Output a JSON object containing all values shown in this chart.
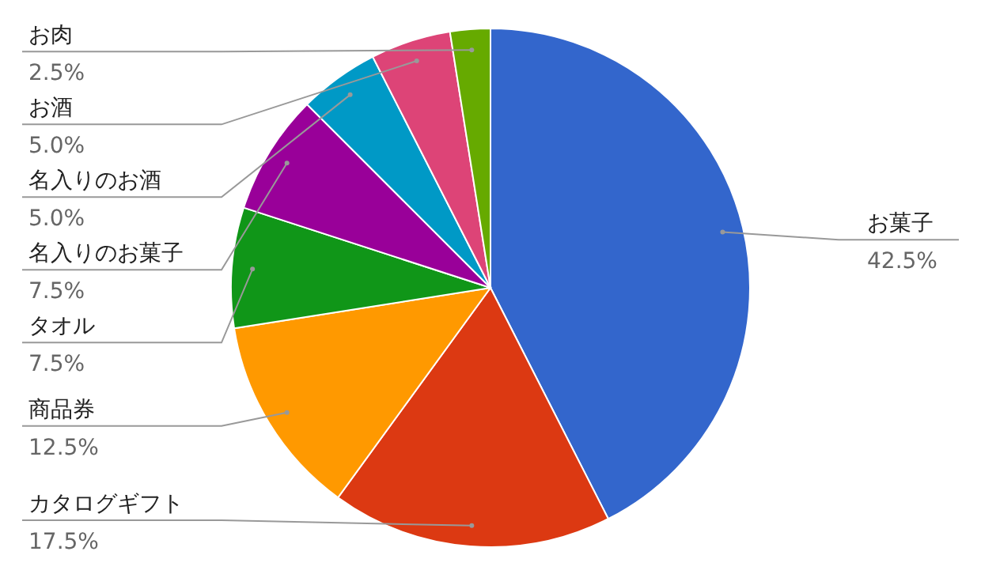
{
  "chart_data": {
    "type": "pie",
    "categories": [
      "お菓子",
      "カタログギフト",
      "商品券",
      "タオル",
      "名入りのお菓子",
      "名入りのお酒",
      "お酒",
      "お肉"
    ],
    "values": [
      42.5,
      17.5,
      12.5,
      7.5,
      7.5,
      5.0,
      5.0,
      2.5
    ],
    "value_labels": [
      "42.5%",
      "17.5%",
      "12.5%",
      "7.5%",
      "7.5%",
      "5.0%",
      "5.0%",
      "2.5%"
    ],
    "colors": [
      "#3366cc",
      "#dc3912",
      "#ff9900",
      "#109618",
      "#990099",
      "#0099c6",
      "#dd4477",
      "#66aa00"
    ]
  }
}
